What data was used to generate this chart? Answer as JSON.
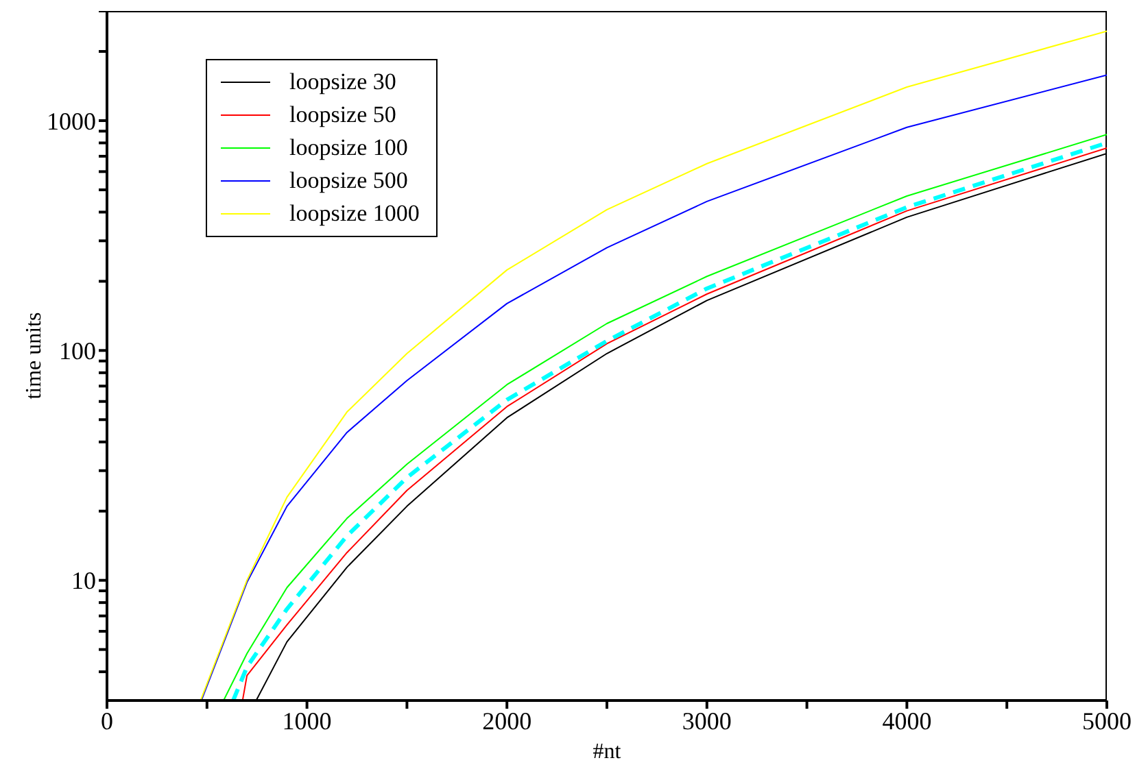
{
  "chart_data": {
    "type": "line",
    "xlabel": "#nt",
    "ylabel": "time units",
    "log": "y",
    "xlim": [
      0,
      5000
    ],
    "ylim": [
      3,
      3000
    ],
    "xticks": [
      0,
      {
        "value": 500,
        "label": null
      },
      1000,
      {
        "value": 1500,
        "label": null
      },
      2000,
      {
        "value": 2500,
        "label": null
      },
      3000,
      {
        "value": 3500,
        "label": null
      },
      4000,
      {
        "value": 4500,
        "label": null
      },
      5000
    ],
    "yticks": [
      {
        "value": 4,
        "label": null
      },
      {
        "value": 5,
        "label": null
      },
      {
        "value": 6,
        "label": null
      },
      {
        "value": 7,
        "label": null
      },
      {
        "value": 8,
        "label": null
      },
      {
        "value": 9,
        "label": null
      },
      10,
      {
        "value": 20,
        "label": null
      },
      {
        "value": 30,
        "label": null
      },
      {
        "value": 40,
        "label": null
      },
      {
        "value": 50,
        "label": null
      },
      {
        "value": 60,
        "label": null
      },
      {
        "value": 70,
        "label": null
      },
      {
        "value": 80,
        "label": null
      },
      {
        "value": 90,
        "label": null
      },
      100,
      {
        "value": 200,
        "label": null
      },
      {
        "value": 300,
        "label": null
      },
      {
        "value": 400,
        "label": null
      },
      {
        "value": 500,
        "label": null
      },
      {
        "value": 600,
        "label": null
      },
      {
        "value": 700,
        "label": null
      },
      {
        "value": 800,
        "label": null
      },
      {
        "value": 900,
        "label": null
      },
      1000,
      {
        "value": 2000,
        "label": null
      },
      {
        "value": 3000,
        "label": null
      }
    ],
    "grid": false,
    "legend": "top left",
    "marker": "none",
    "series": [
      {
        "name": "loopsize 30",
        "color": "#000000",
        "line_style": "solid",
        "x": [
          746,
          900,
          1200,
          1500,
          2000,
          2500,
          3000,
          4000,
          5000
        ],
        "values": [
          3,
          5.4,
          11.4,
          21,
          51,
          97,
          165,
          380,
          720
        ]
      },
      {
        "name": "loopsize 50",
        "color": "#ff0000",
        "line_style": "solid",
        "x": [
          678,
          700,
          900,
          1200,
          1500,
          2000,
          2500,
          3000,
          4000,
          5000
        ],
        "values": [
          3,
          3.85,
          6.4,
          13.2,
          24.6,
          57,
          107,
          176,
          405,
          760
        ]
      },
      {
        "name": "loopsize 100",
        "color": "#00ff00",
        "line_style": "solid",
        "x": [
          583,
          700,
          900,
          1200,
          1500,
          2000,
          2500,
          3000,
          4000,
          5000
        ],
        "values": [
          3,
          4.8,
          9.3,
          18.6,
          32,
          71,
          131,
          210,
          470,
          870
        ]
      },
      {
        "name": "loopsize 500",
        "color": "#0000ff",
        "line_style": "solid",
        "x": [
          472,
          700,
          900,
          1200,
          1500,
          2000,
          2500,
          3000,
          4000,
          5000
        ],
        "values": [
          3,
          9.8,
          21,
          44,
          74,
          160,
          280,
          445,
          935,
          1580
        ]
      },
      {
        "name": "loopsize 1000",
        "color": "#ffff00",
        "line_style": "solid",
        "x": [
          468,
          700,
          900,
          1200,
          1500,
          2000,
          2500,
          3000,
          4000,
          5000
        ],
        "values": [
          3,
          10,
          23,
          54,
          97,
          224,
          410,
          650,
          1400,
          2450
        ]
      },
      {
        "color": "#00ffff",
        "line_style": "dashed",
        "x": [
          631,
          700,
          900,
          1200,
          1500,
          2000,
          2500,
          3000,
          4000,
          5000
        ],
        "values": [
          3,
          4.2,
          7.5,
          15.6,
          28,
          61,
          110,
          186,
          420,
          800
        ]
      }
    ]
  }
}
